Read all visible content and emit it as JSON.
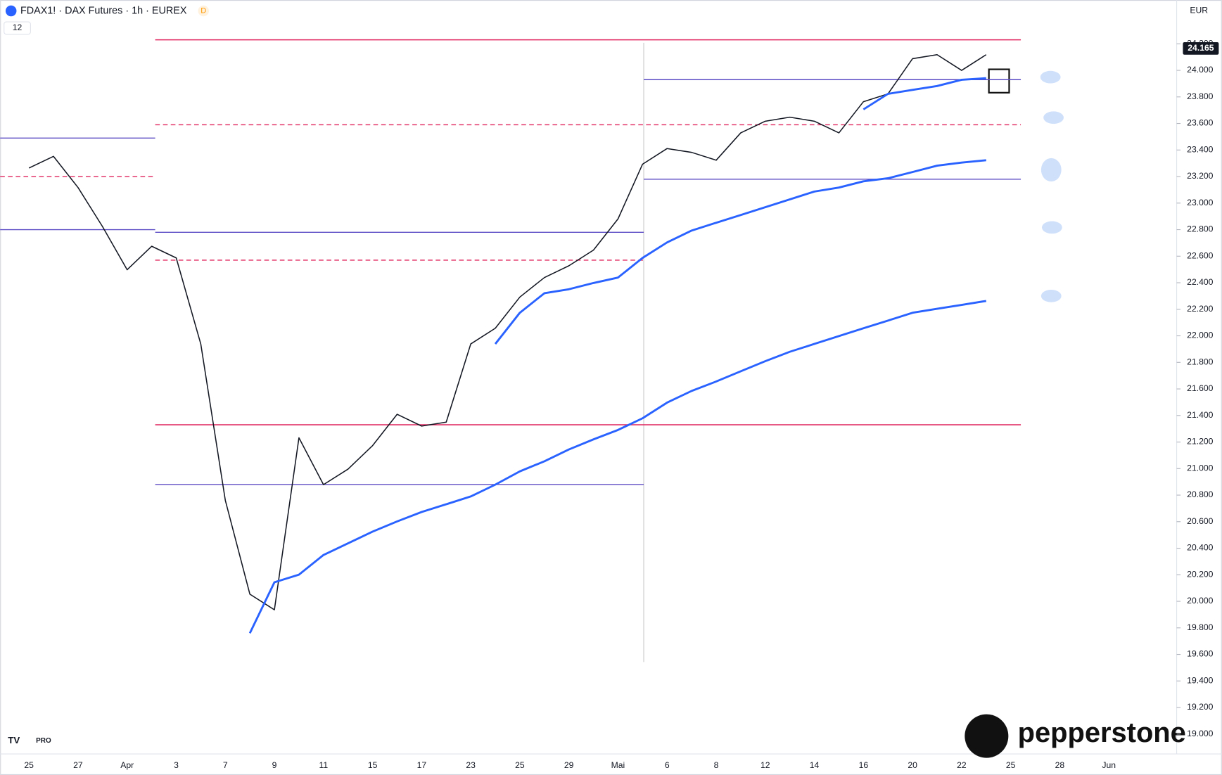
{
  "chart_data": {
    "type": "line",
    "title": "FDAX1! · DAX Futures · 1h · EUREX",
    "categories": [
      "25",
      null,
      "27",
      null,
      "Apr",
      null,
      "3",
      null,
      "7",
      null,
      "9",
      null,
      "11",
      null,
      "15",
      null,
      "17",
      null,
      "23",
      null,
      "25",
      null,
      "29",
      null,
      "Mai",
      null,
      "6",
      null,
      "8",
      null,
      "12",
      null,
      "14",
      null,
      "16",
      null,
      "20",
      null,
      "22",
      null,
      "25",
      null,
      "28",
      null,
      "Jun"
    ],
    "series": [
      {
        "color": "#131722",
        "values": [
          23264,
          23352,
          23117,
          22822,
          22498,
          22675,
          22587,
          21939,
          20761,
          20054,
          19936,
          21232,
          20879,
          20996,
          21173,
          21409,
          21320,
          21350,
          21939,
          22057,
          22292,
          22439,
          22528,
          22646,
          22881,
          23293,
          23411,
          23382,
          23323,
          23529,
          23617,
          23647,
          23617,
          23529,
          23764,
          23823,
          24088,
          24118,
          24000,
          24118,
          null,
          null,
          null,
          null,
          null
        ]
      },
      {
        "color": "#2962ff",
        "values": [
          null,
          null,
          null,
          null,
          null,
          null,
          null,
          null,
          null,
          19760,
          20143,
          20201,
          20349,
          20437,
          20525,
          20602,
          20673,
          20731,
          20790,
          20879,
          20979,
          21055,
          21144,
          21220,
          21291,
          21379,
          21497,
          21585,
          21656,
          21733,
          21809,
          21880,
          21939,
          21998,
          22057,
          22115,
          22174,
          22204,
          22233,
          22263,
          null,
          null,
          null,
          null,
          null
        ]
      },
      {
        "color": "#2962ff",
        "values": [
          null,
          null,
          null,
          null,
          null,
          null,
          null,
          null,
          null,
          null,
          null,
          null,
          null,
          null,
          null,
          null,
          null,
          null,
          null,
          21939,
          22174,
          22321,
          22351,
          22398,
          22439,
          22587,
          22704,
          22793,
          22852,
          22910,
          22969,
          23028,
          23087,
          23117,
          23164,
          23187,
          23234,
          23282,
          23305,
          23323,
          null,
          null,
          null,
          null,
          null
        ]
      },
      {
        "color": "#2962ff",
        "values": [
          null,
          null,
          null,
          null,
          null,
          null,
          null,
          null,
          null,
          null,
          null,
          null,
          null,
          null,
          null,
          null,
          null,
          null,
          null,
          null,
          null,
          null,
          null,
          null,
          null,
          null,
          null,
          null,
          null,
          null,
          null,
          null,
          null,
          null,
          23706,
          23823,
          23853,
          23882,
          23929,
          23941,
          null,
          null,
          null,
          null,
          null
        ]
      }
    ],
    "levels": [
      {
        "value": 24230,
        "color": "#e0245e",
        "dash": false
      },
      {
        "value": 23930,
        "color": "#5b4bc4",
        "dash": false
      },
      {
        "value": 23590,
        "color": "#e0245e",
        "dash": true
      },
      {
        "value": 23180,
        "color": "#5b4bc4",
        "dash": false
      },
      {
        "value": 22780,
        "color": "#5b4bc4",
        "dash": false
      },
      {
        "value": 22570,
        "color": "#e0245e",
        "dash": true
      },
      {
        "value": 21330,
        "color": "#e0245e",
        "dash": false
      },
      {
        "value": 20880,
        "color": "#5b4bc4",
        "dash": false
      },
      {
        "value": 23490,
        "color": "#5b4bc4",
        "dash": false
      },
      {
        "value": 23200,
        "color": "#e0245e",
        "dash": true
      },
      {
        "value": 22800,
        "color": "#5b4bc4",
        "dash": false
      }
    ],
    "last_price": {
      "value": 24165,
      "label": "24.165"
    },
    "ylim": [
      18850,
      24530
    ],
    "yticks": [
      {
        "value": 19000,
        "label": "19.000"
      },
      {
        "value": 19200,
        "label": "19.200"
      },
      {
        "value": 19400,
        "label": "19.400"
      },
      {
        "value": 19600,
        "label": "19.600"
      },
      {
        "value": 19800,
        "label": "19.800"
      },
      {
        "value": 20000,
        "label": "20.000"
      },
      {
        "value": 20200,
        "label": "20.200"
      },
      {
        "value": 20400,
        "label": "20.400"
      },
      {
        "value": 20600,
        "label": "20.600"
      },
      {
        "value": 20800,
        "label": "20.800"
      },
      {
        "value": 21000,
        "label": "21.000"
      },
      {
        "value": 21200,
        "label": "21.200"
      },
      {
        "value": 21400,
        "label": "21.400"
      },
      {
        "value": 21600,
        "label": "21.600"
      },
      {
        "value": 21800,
        "label": "21.800"
      },
      {
        "value": 22000,
        "label": "22.000"
      },
      {
        "value": 22200,
        "label": "22.200"
      },
      {
        "value": 22400,
        "label": "22.400"
      },
      {
        "value": 22600,
        "label": "22.600"
      },
      {
        "value": 22800,
        "label": "22.800"
      },
      {
        "value": 23000,
        "label": "23.000"
      },
      {
        "value": 23200,
        "label": "23.200"
      },
      {
        "value": 23400,
        "label": "23.400"
      },
      {
        "value": 23600,
        "label": "23.600"
      },
      {
        "value": 23800,
        "label": "23.800"
      },
      {
        "value": 24000,
        "label": "24.000"
      },
      {
        "value": 24200,
        "label": "24.200"
      }
    ]
  },
  "ui": {
    "badge": "D",
    "indicators": "12",
    "currency": "EUR",
    "tv": "PRO",
    "brand": "pepperstone"
  }
}
